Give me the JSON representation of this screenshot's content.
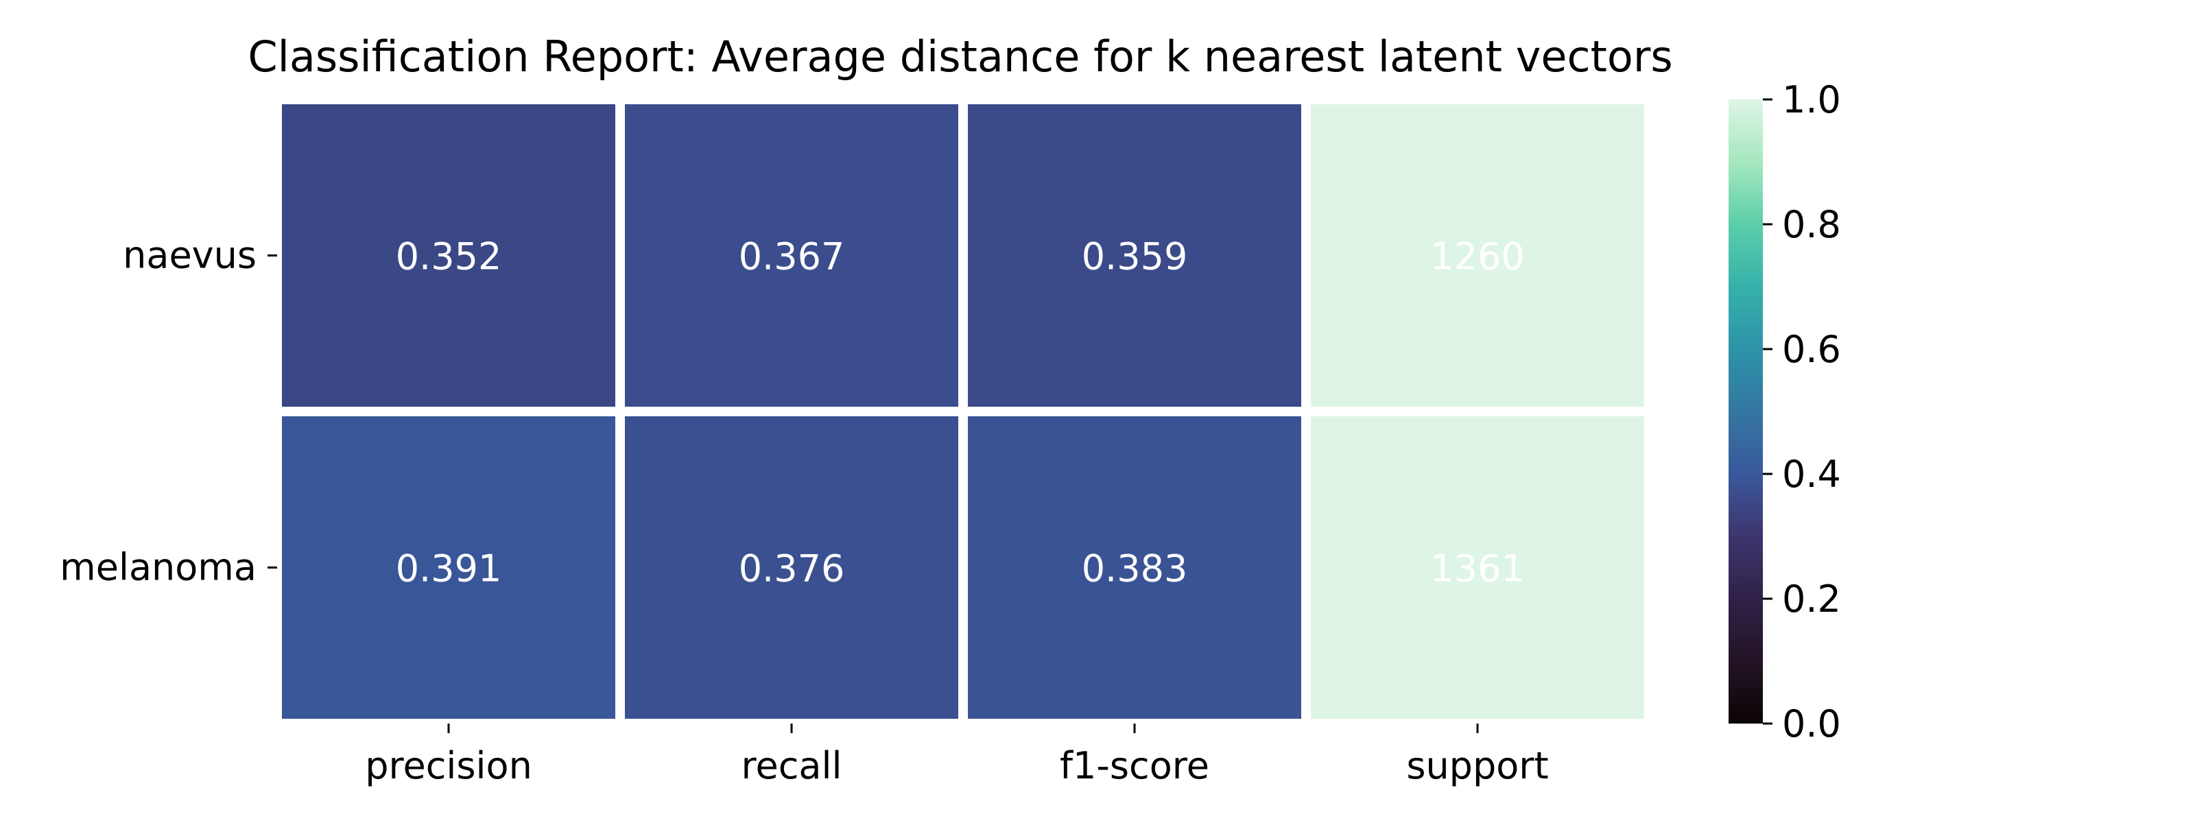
{
  "chart_data": {
    "type": "heatmap",
    "title": "Classification Report: Average distance for k nearest latent vectors",
    "xlabel": "",
    "ylabel": "",
    "columns": [
      "precision",
      "recall",
      "f1-score",
      "support"
    ],
    "rows": [
      "naevus",
      "melanoma"
    ],
    "values": [
      [
        0.352,
        0.367,
        0.359,
        1260
      ],
      [
        0.391,
        0.376,
        0.383,
        1361
      ]
    ],
    "cell_labels": [
      [
        "0.352",
        "0.367",
        "0.359",
        "1260"
      ],
      [
        "0.391",
        "0.376",
        "0.383",
        "1361"
      ]
    ],
    "colorbar": {
      "range": [
        0.0,
        1.0
      ],
      "ticks": [
        0.0,
        0.2,
        0.4,
        0.6,
        0.8,
        1.0
      ],
      "tick_labels": [
        "0.0",
        "0.2",
        "0.4",
        "0.6",
        "0.8",
        "1.0"
      ],
      "colormap": "mako"
    },
    "grid": false,
    "legend": "colorbar right"
  }
}
